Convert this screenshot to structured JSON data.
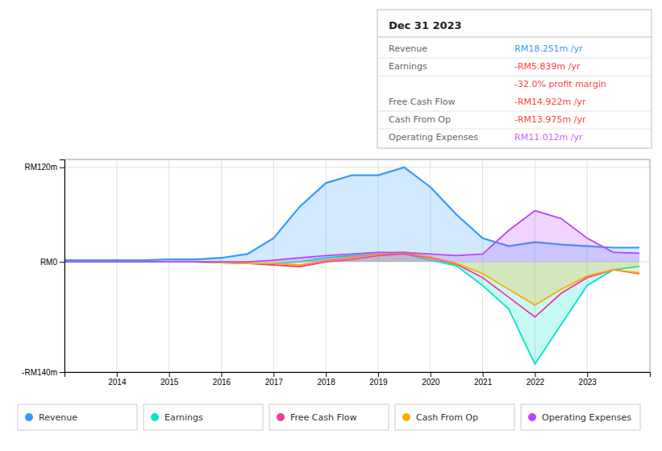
{
  "chart_data": {
    "type": "area",
    "title": "Dec 31 2023",
    "x": [
      2013.0,
      2013.5,
      2014.0,
      2014.5,
      2015.0,
      2015.5,
      2016.0,
      2016.5,
      2017.0,
      2017.5,
      2018.0,
      2018.5,
      2019.0,
      2019.5,
      2020.0,
      2020.5,
      2021.0,
      2021.5,
      2022.0,
      2022.5,
      2023.0,
      2023.5,
      2024.0
    ],
    "series": [
      {
        "name": "Revenue",
        "color": "#3399ff",
        "type": "area",
        "values": [
          2,
          2,
          2,
          2,
          3,
          3,
          5,
          10,
          30,
          70,
          100,
          110,
          110,
          120,
          95,
          60,
          30,
          20,
          25,
          22,
          20,
          18,
          18
        ]
      },
      {
        "name": "Earnings",
        "color": "#00e5cc",
        "type": "area",
        "values": [
          0,
          0,
          0,
          0,
          0,
          0,
          -1,
          -2,
          -2,
          0,
          5,
          8,
          10,
          10,
          2,
          -5,
          -30,
          -60,
          -130,
          -80,
          -30,
          -10,
          -6
        ]
      },
      {
        "name": "Free Cash Flow",
        "color": "#ff3399",
        "type": "line",
        "values": [
          0,
          0,
          0,
          0,
          0,
          0,
          -1,
          -2,
          -4,
          -6,
          0,
          3,
          8,
          10,
          5,
          -3,
          -20,
          -45,
          -70,
          -40,
          -20,
          -10,
          -15
        ]
      },
      {
        "name": "Cash From Op",
        "color": "#ffaa00",
        "type": "area",
        "values": [
          0,
          0,
          0,
          0,
          0,
          0,
          -1,
          -2,
          -2,
          -4,
          2,
          6,
          10,
          12,
          6,
          -2,
          -15,
          -35,
          -55,
          -35,
          -18,
          -10,
          -14
        ]
      },
      {
        "name": "Operating Expenses",
        "color": "#bb44ff",
        "type": "area",
        "values": [
          0,
          0,
          0,
          0,
          0,
          0,
          0,
          0,
          2,
          5,
          8,
          10,
          12,
          12,
          10,
          8,
          10,
          40,
          65,
          55,
          30,
          12,
          11
        ]
      }
    ],
    "xlim": [
      2013.0,
      2024.2
    ],
    "xticks": [
      2014,
      2015,
      2016,
      2017,
      2018,
      2019,
      2020,
      2021,
      2022,
      2023
    ],
    "ylim": [
      -140,
      130
    ],
    "yticks": [
      {
        "value": -140,
        "label": "-RM140m"
      },
      {
        "value": 0,
        "label": "RM0"
      },
      {
        "value": 120,
        "label": "RM120m"
      }
    ],
    "grid": true,
    "legend": "bottom",
    "annotations": [
      {
        "label": "Revenue",
        "text": "RM18.251m /yr",
        "color": "#3399ff"
      },
      {
        "label": "Earnings",
        "text": "-RM5.839m /yr",
        "color": "#ff4444"
      },
      {
        "text": "-32.0% profit margin",
        "color": "#ff4444"
      },
      {
        "label": "Free Cash Flow",
        "text": "-RM14.922m /yr",
        "color": "#ff4444"
      },
      {
        "label": "Cash From Op",
        "text": "-RM13.975m /yr",
        "color": "#ff4444"
      },
      {
        "label": "Operating Expenses",
        "text": "RM11.012m /yr",
        "color": "#cc66ff"
      }
    ]
  }
}
